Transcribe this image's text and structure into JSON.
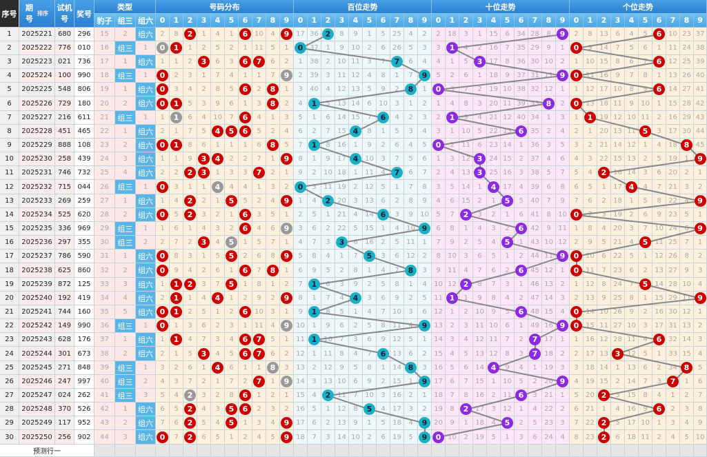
{
  "header": {
    "seq": "序号",
    "issue": "期号",
    "sort": "排序",
    "test": "试机号",
    "draw": "奖号",
    "type": "类型",
    "type_cols": [
      "豹子",
      "组三",
      "组六"
    ],
    "dist": "号码分布",
    "bai": "百位走势",
    "shi": "十位走势",
    "ge": "个位走势",
    "digits": [
      "0",
      "1",
      "2",
      "3",
      "4",
      "5",
      "6",
      "7",
      "8",
      "9"
    ]
  },
  "colors": {
    "dist_hit": "#cc0000",
    "dist_repeat": "#999999",
    "bai": "#1ab0c8",
    "shi": "#8a2be2",
    "ge": "#cc0000",
    "line": "#888888",
    "type_tag": "#5ab4e6"
  },
  "rows": [
    {
      "no": "1",
      "issue": "2025221",
      "test": "680",
      "draw": "296"
    },
    {
      "no": "2",
      "issue": "2025222",
      "test": "776",
      "draw": "010"
    },
    {
      "no": "3",
      "issue": "2025223",
      "test": "021",
      "draw": "736"
    },
    {
      "no": "4",
      "issue": "2025224",
      "test": "100",
      "draw": "990"
    },
    {
      "no": "5",
      "issue": "2025225",
      "test": "548",
      "draw": "806"
    },
    {
      "no": "6",
      "issue": "2025226",
      "test": "729",
      "draw": "180"
    },
    {
      "no": "7",
      "issue": "2025227",
      "test": "216",
      "draw": "611"
    },
    {
      "no": "8",
      "issue": "2025228",
      "test": "451",
      "draw": "465"
    },
    {
      "no": "9",
      "issue": "2025229",
      "test": "888",
      "draw": "108"
    },
    {
      "no": "10",
      "issue": "2025230",
      "test": "258",
      "draw": "439"
    },
    {
      "no": "11",
      "issue": "2025231",
      "test": "746",
      "draw": "732"
    },
    {
      "no": "12",
      "issue": "2025232",
      "test": "715",
      "draw": "044"
    },
    {
      "no": "13",
      "issue": "2025233",
      "test": "269",
      "draw": "259"
    },
    {
      "no": "14",
      "issue": "2025234",
      "test": "525",
      "draw": "620"
    },
    {
      "no": "15",
      "issue": "2025235",
      "test": "336",
      "draw": "969"
    },
    {
      "no": "16",
      "issue": "2025236",
      "test": "297",
      "draw": "355"
    },
    {
      "no": "17",
      "issue": "2025237",
      "test": "786",
      "draw": "590"
    },
    {
      "no": "18",
      "issue": "2025238",
      "test": "625",
      "draw": "860"
    },
    {
      "no": "19",
      "issue": "2025239",
      "test": "872",
      "draw": "125"
    },
    {
      "no": "20",
      "issue": "2025240",
      "test": "192",
      "draw": "419"
    },
    {
      "no": "21",
      "issue": "2025241",
      "test": "744",
      "draw": "160"
    },
    {
      "no": "22",
      "issue": "2025242",
      "test": "149",
      "draw": "990"
    },
    {
      "no": "23",
      "issue": "2025243",
      "test": "628",
      "draw": "176"
    },
    {
      "no": "24",
      "issue": "2025244",
      "test": "301",
      "draw": "673"
    },
    {
      "no": "25",
      "issue": "2025245",
      "test": "271",
      "draw": "848"
    },
    {
      "no": "26",
      "issue": "2025246",
      "test": "247",
      "draw": "997"
    },
    {
      "no": "27",
      "issue": "2025247",
      "test": "024",
      "draw": "262"
    },
    {
      "no": "28",
      "issue": "2025248",
      "test": "370",
      "draw": "526"
    },
    {
      "no": "29",
      "issue": "2025249",
      "test": "117",
      "draw": "952"
    },
    {
      "no": "30",
      "issue": "2025250",
      "test": "256",
      "draw": "902"
    }
  ],
  "first_row_misses": {
    "type": [
      15,
      2,
      0
    ],
    "dist": [
      2,
      8,
      0,
      1,
      4,
      1,
      0,
      10,
      4,
      0
    ],
    "bai": [
      17,
      36,
      0,
      8,
      9,
      1,
      5,
      25,
      4,
      2
    ],
    "shi": [
      2,
      18,
      3,
      1,
      15,
      6,
      34,
      28,
      8,
      0
    ],
    "ge": [
      2,
      8,
      13,
      6,
      4,
      5,
      0,
      10,
      23,
      37
    ]
  },
  "footer": {
    "predict_label": "预测行一"
  }
}
